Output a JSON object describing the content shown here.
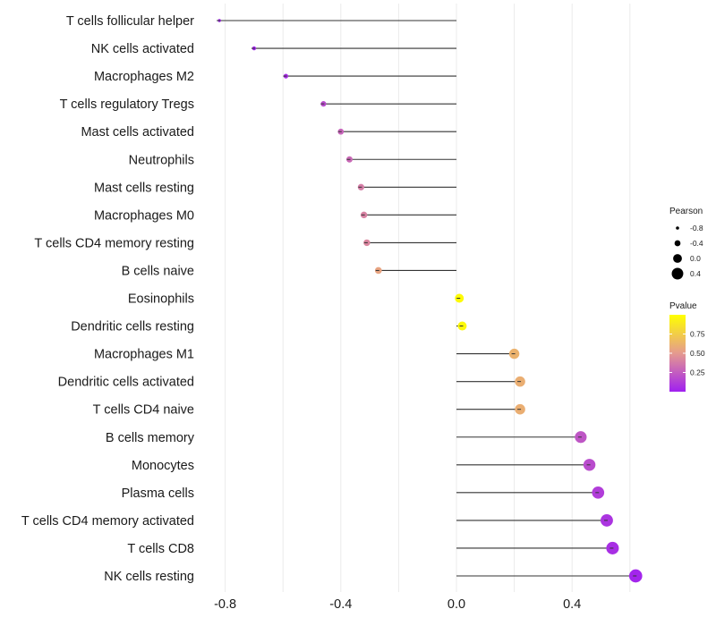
{
  "chart_data": {
    "type": "lollipop",
    "title": "",
    "xlabel": "",
    "ylabel": "",
    "xlim": [
      -0.88,
      0.66
    ],
    "xticks": [
      -0.8,
      -0.4,
      0.0,
      0.4
    ],
    "xtick_labels": [
      "-0.8",
      "-0.4",
      "0.0",
      "0.4"
    ],
    "grid": true,
    "stem_origin": 0,
    "categories": [
      "T cells follicular helper",
      "NK cells activated",
      "Macrophages M2",
      "T cells regulatory  Tregs ",
      "Mast cells activated",
      "Neutrophils",
      "Mast cells resting",
      "Macrophages M0",
      "T cells CD4 memory resting",
      "B cells naive",
      "Eosinophils",
      "Dendritic cells resting",
      "Macrophages M1",
      "Dendritic cells activated",
      "T cells CD4 naive",
      "B cells memory",
      "Monocytes",
      "Plasma cells",
      "T cells CD4 memory activated",
      "T cells CD8",
      "NK cells resting"
    ],
    "values": [
      -0.82,
      -0.7,
      -0.59,
      -0.46,
      -0.4,
      -0.37,
      -0.33,
      -0.32,
      -0.31,
      -0.27,
      0.01,
      0.02,
      0.2,
      0.22,
      0.22,
      0.43,
      0.46,
      0.49,
      0.52,
      0.54,
      0.62
    ],
    "pvalues": [
      0.001,
      0.01,
      0.05,
      0.18,
      0.28,
      0.3,
      0.38,
      0.4,
      0.42,
      0.55,
      0.98,
      0.97,
      0.62,
      0.6,
      0.6,
      0.22,
      0.18,
      0.12,
      0.08,
      0.06,
      0.02
    ],
    "legend_size": {
      "title": "Pearson",
      "labels": [
        "-0.8",
        "-0.4",
        "0.0",
        "0.4"
      ],
      "values": [
        -0.8,
        -0.4,
        0.0,
        0.4
      ]
    },
    "legend_color": {
      "title": "Pvalue",
      "labels": [
        "0.75",
        "0.50",
        "0.25"
      ],
      "values": [
        0.75,
        0.5,
        0.25
      ],
      "range": [
        0,
        1
      ],
      "low_color": "#A020F0",
      "mid_color": "#E59A8F",
      "high_color": "#FFFF00"
    },
    "legend_position": "right"
  }
}
